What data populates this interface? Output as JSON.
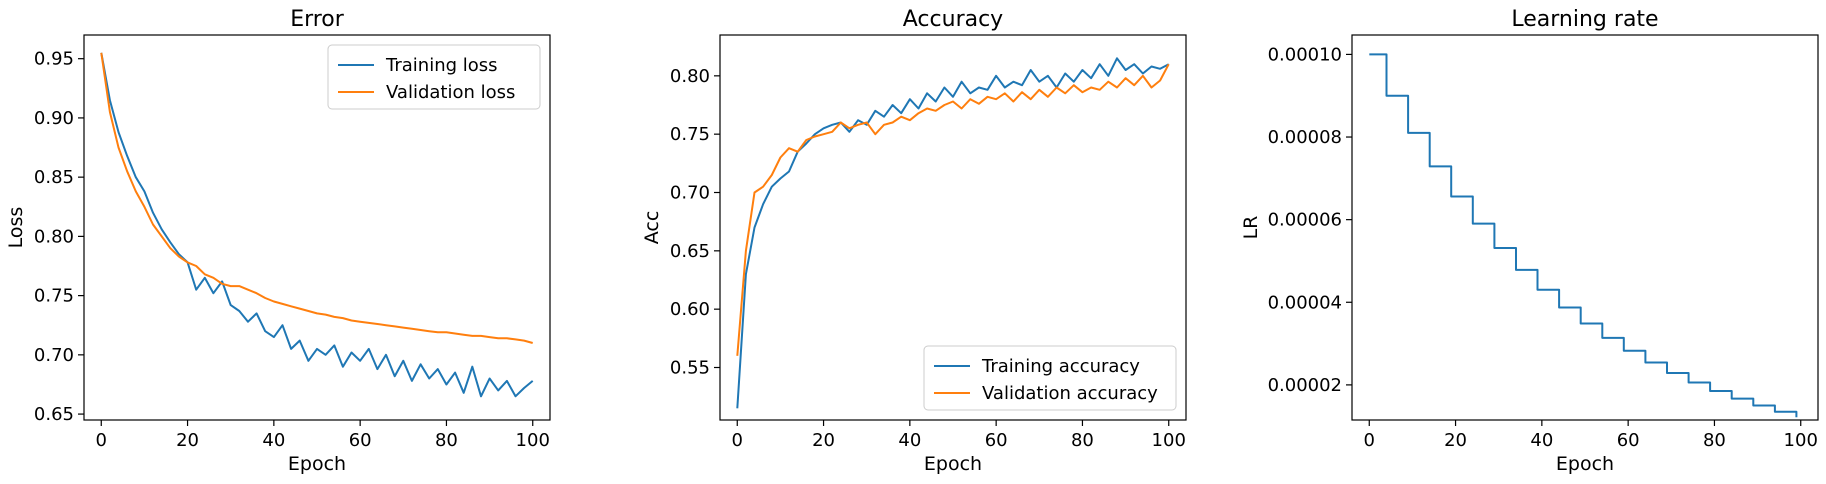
{
  "chart_data": [
    {
      "type": "line",
      "title": "Error",
      "xlabel": "Epoch",
      "ylabel": "Loss",
      "xlim": [
        -4,
        104
      ],
      "ylim": [
        0.645,
        0.97
      ],
      "xticks": [
        0,
        20,
        40,
        60,
        80,
        100
      ],
      "yticks": [
        0.65,
        0.7,
        0.75,
        0.8,
        0.85,
        0.9,
        0.95
      ],
      "ytick_labels": [
        "0.65",
        "0.70",
        "0.75",
        "0.80",
        "0.85",
        "0.90",
        "0.95"
      ],
      "legend_position": "upper right",
      "series": [
        {
          "name": "Training loss",
          "color": "#1f77b4",
          "x": [
            0,
            2,
            4,
            6,
            8,
            10,
            12,
            14,
            16,
            18,
            20,
            22,
            24,
            26,
            28,
            30,
            32,
            34,
            36,
            38,
            40,
            42,
            44,
            46,
            48,
            50,
            52,
            54,
            56,
            58,
            60,
            62,
            64,
            66,
            68,
            70,
            72,
            74,
            76,
            78,
            80,
            82,
            84,
            86,
            88,
            90,
            92,
            94,
            96,
            98,
            100
          ],
          "y": [
            0.955,
            0.915,
            0.888,
            0.868,
            0.85,
            0.838,
            0.82,
            0.806,
            0.795,
            0.785,
            0.778,
            0.755,
            0.765,
            0.752,
            0.762,
            0.742,
            0.737,
            0.728,
            0.735,
            0.72,
            0.715,
            0.725,
            0.705,
            0.712,
            0.695,
            0.705,
            0.7,
            0.708,
            0.69,
            0.702,
            0.695,
            0.705,
            0.688,
            0.7,
            0.682,
            0.695,
            0.678,
            0.692,
            0.68,
            0.688,
            0.675,
            0.685,
            0.668,
            0.69,
            0.665,
            0.68,
            0.67,
            0.678,
            0.665,
            0.672,
            0.678
          ]
        },
        {
          "name": "Validation loss",
          "color": "#ff7f0e",
          "x": [
            0,
            2,
            4,
            6,
            8,
            10,
            12,
            14,
            16,
            18,
            20,
            22,
            24,
            26,
            28,
            30,
            32,
            34,
            36,
            38,
            40,
            42,
            44,
            46,
            48,
            50,
            52,
            54,
            56,
            58,
            60,
            62,
            64,
            66,
            68,
            70,
            72,
            74,
            76,
            78,
            80,
            82,
            84,
            86,
            88,
            90,
            92,
            94,
            96,
            98,
            100
          ],
          "y": [
            0.955,
            0.905,
            0.875,
            0.855,
            0.838,
            0.825,
            0.81,
            0.8,
            0.79,
            0.783,
            0.778,
            0.775,
            0.768,
            0.765,
            0.76,
            0.758,
            0.758,
            0.755,
            0.752,
            0.748,
            0.745,
            0.743,
            0.741,
            0.739,
            0.737,
            0.735,
            0.734,
            0.732,
            0.731,
            0.729,
            0.728,
            0.727,
            0.726,
            0.725,
            0.724,
            0.723,
            0.722,
            0.721,
            0.72,
            0.719,
            0.719,
            0.718,
            0.717,
            0.716,
            0.716,
            0.715,
            0.714,
            0.714,
            0.713,
            0.712,
            0.71
          ]
        }
      ]
    },
    {
      "type": "line",
      "title": "Accuracy",
      "xlabel": "Epoch",
      "ylabel": "Acc",
      "xlim": [
        -4,
        104
      ],
      "ylim": [
        0.505,
        0.835
      ],
      "xticks": [
        0,
        20,
        40,
        60,
        80,
        100
      ],
      "yticks": [
        0.55,
        0.6,
        0.65,
        0.7,
        0.75,
        0.8
      ],
      "ytick_labels": [
        "0.55",
        "0.60",
        "0.65",
        "0.70",
        "0.75",
        "0.80"
      ],
      "legend_position": "lower right",
      "series": [
        {
          "name": "Training accuracy",
          "color": "#1f77b4",
          "x": [
            0,
            2,
            4,
            6,
            8,
            10,
            12,
            14,
            16,
            18,
            20,
            22,
            24,
            26,
            28,
            30,
            32,
            34,
            36,
            38,
            40,
            42,
            44,
            46,
            48,
            50,
            52,
            54,
            56,
            58,
            60,
            62,
            64,
            66,
            68,
            70,
            72,
            74,
            76,
            78,
            80,
            82,
            84,
            86,
            88,
            90,
            92,
            94,
            96,
            98,
            100
          ],
          "y": [
            0.515,
            0.63,
            0.67,
            0.69,
            0.705,
            0.712,
            0.718,
            0.735,
            0.742,
            0.75,
            0.755,
            0.758,
            0.76,
            0.752,
            0.762,
            0.758,
            0.77,
            0.765,
            0.775,
            0.768,
            0.78,
            0.772,
            0.785,
            0.778,
            0.79,
            0.782,
            0.795,
            0.785,
            0.79,
            0.788,
            0.8,
            0.79,
            0.795,
            0.792,
            0.805,
            0.795,
            0.8,
            0.79,
            0.802,
            0.795,
            0.805,
            0.798,
            0.81,
            0.8,
            0.815,
            0.805,
            0.81,
            0.802,
            0.808,
            0.806,
            0.81
          ]
        },
        {
          "name": "Validation accuracy",
          "color": "#ff7f0e",
          "x": [
            0,
            2,
            4,
            6,
            8,
            10,
            12,
            14,
            16,
            18,
            20,
            22,
            24,
            26,
            28,
            30,
            32,
            34,
            36,
            38,
            40,
            42,
            44,
            46,
            48,
            50,
            52,
            54,
            56,
            58,
            60,
            62,
            64,
            66,
            68,
            70,
            72,
            74,
            76,
            78,
            80,
            82,
            84,
            86,
            88,
            90,
            92,
            94,
            96,
            98,
            100
          ],
          "y": [
            0.56,
            0.65,
            0.7,
            0.705,
            0.715,
            0.73,
            0.738,
            0.735,
            0.745,
            0.748,
            0.75,
            0.752,
            0.76,
            0.755,
            0.758,
            0.76,
            0.75,
            0.758,
            0.76,
            0.765,
            0.762,
            0.768,
            0.772,
            0.77,
            0.775,
            0.778,
            0.772,
            0.78,
            0.776,
            0.782,
            0.78,
            0.785,
            0.778,
            0.786,
            0.78,
            0.788,
            0.782,
            0.79,
            0.785,
            0.792,
            0.786,
            0.79,
            0.788,
            0.795,
            0.79,
            0.798,
            0.792,
            0.8,
            0.79,
            0.796,
            0.81
          ]
        }
      ]
    },
    {
      "type": "line",
      "title": "Learning rate",
      "xlabel": "Epoch",
      "ylabel": "LR",
      "xlim": [
        -4,
        104
      ],
      "ylim": [
        1.15e-05,
        0.0001047
      ],
      "xticks": [
        0,
        20,
        40,
        60,
        80,
        100
      ],
      "yticks": [
        2e-05,
        4e-05,
        6e-05,
        8e-05,
        0.0001
      ],
      "ytick_labels": [
        "0.00002",
        "0.00004",
        "0.00006",
        "0.00008",
        "0.00010"
      ],
      "series": [
        {
          "name": "",
          "color": "#1f77b4",
          "step_every": 5,
          "initial": 0.0001,
          "factor": 0.9,
          "epochs": 100
        }
      ]
    }
  ]
}
